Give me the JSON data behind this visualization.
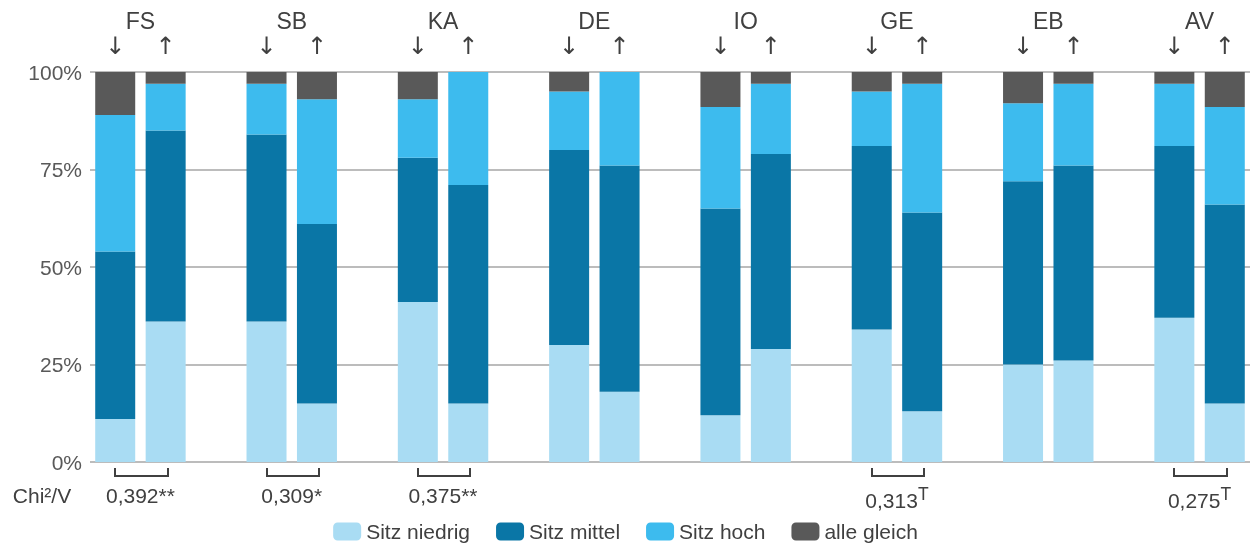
{
  "chart_data": {
    "type": "bar",
    "stacked": true,
    "categories": [
      "↓",
      "↑",
      "↓",
      "↑",
      "↓",
      "↑",
      "↓",
      "↑",
      "↓",
      "↑",
      "↓",
      "↑",
      "↓",
      "↑",
      "↓",
      "↑"
    ],
    "series": [
      {
        "name": "Sitz niedrig",
        "color": "#a9dcf3",
        "values": [
          11,
          36,
          36,
          15,
          41,
          15,
          30,
          18,
          12,
          29,
          34,
          13,
          25,
          26,
          37,
          15
        ]
      },
      {
        "name": "Sitz mittel",
        "color": "#0a76a6",
        "values": [
          43,
          49,
          48,
          46,
          37,
          56,
          50,
          58,
          53,
          50,
          47,
          51,
          47,
          50,
          44,
          51
        ]
      },
      {
        "name": "Sitz hoch",
        "color": "#3dbbee",
        "values": [
          35,
          12,
          13,
          32,
          15,
          29,
          15,
          24,
          26,
          18,
          14,
          33,
          20,
          21,
          16,
          25
        ]
      },
      {
        "name": "alle gleich",
        "color": "#595959",
        "values": [
          11,
          3,
          3,
          7,
          7,
          0,
          5,
          0,
          9,
          3,
          5,
          3,
          8,
          3,
          3,
          9
        ]
      }
    ],
    "ylim": [
      0,
      100
    ],
    "yticks": [
      {
        "value": 0,
        "label": "0%"
      },
      {
        "value": 25,
        "label": "25%"
      },
      {
        "value": 50,
        "label": "50%"
      },
      {
        "value": 75,
        "label": "75%"
      },
      {
        "value": 100,
        "label": "100%"
      }
    ],
    "grid": "y",
    "legend": "bottom",
    "annotations": [
      "FS",
      "SB",
      "KA",
      "DE",
      "IO",
      "GE",
      "EB",
      "AV",
      "Chi²/V",
      "0,392**",
      "0,309*",
      "0,375**",
      "0,313$^{T}$",
      "0,275$^{T}$"
    ]
  }
}
